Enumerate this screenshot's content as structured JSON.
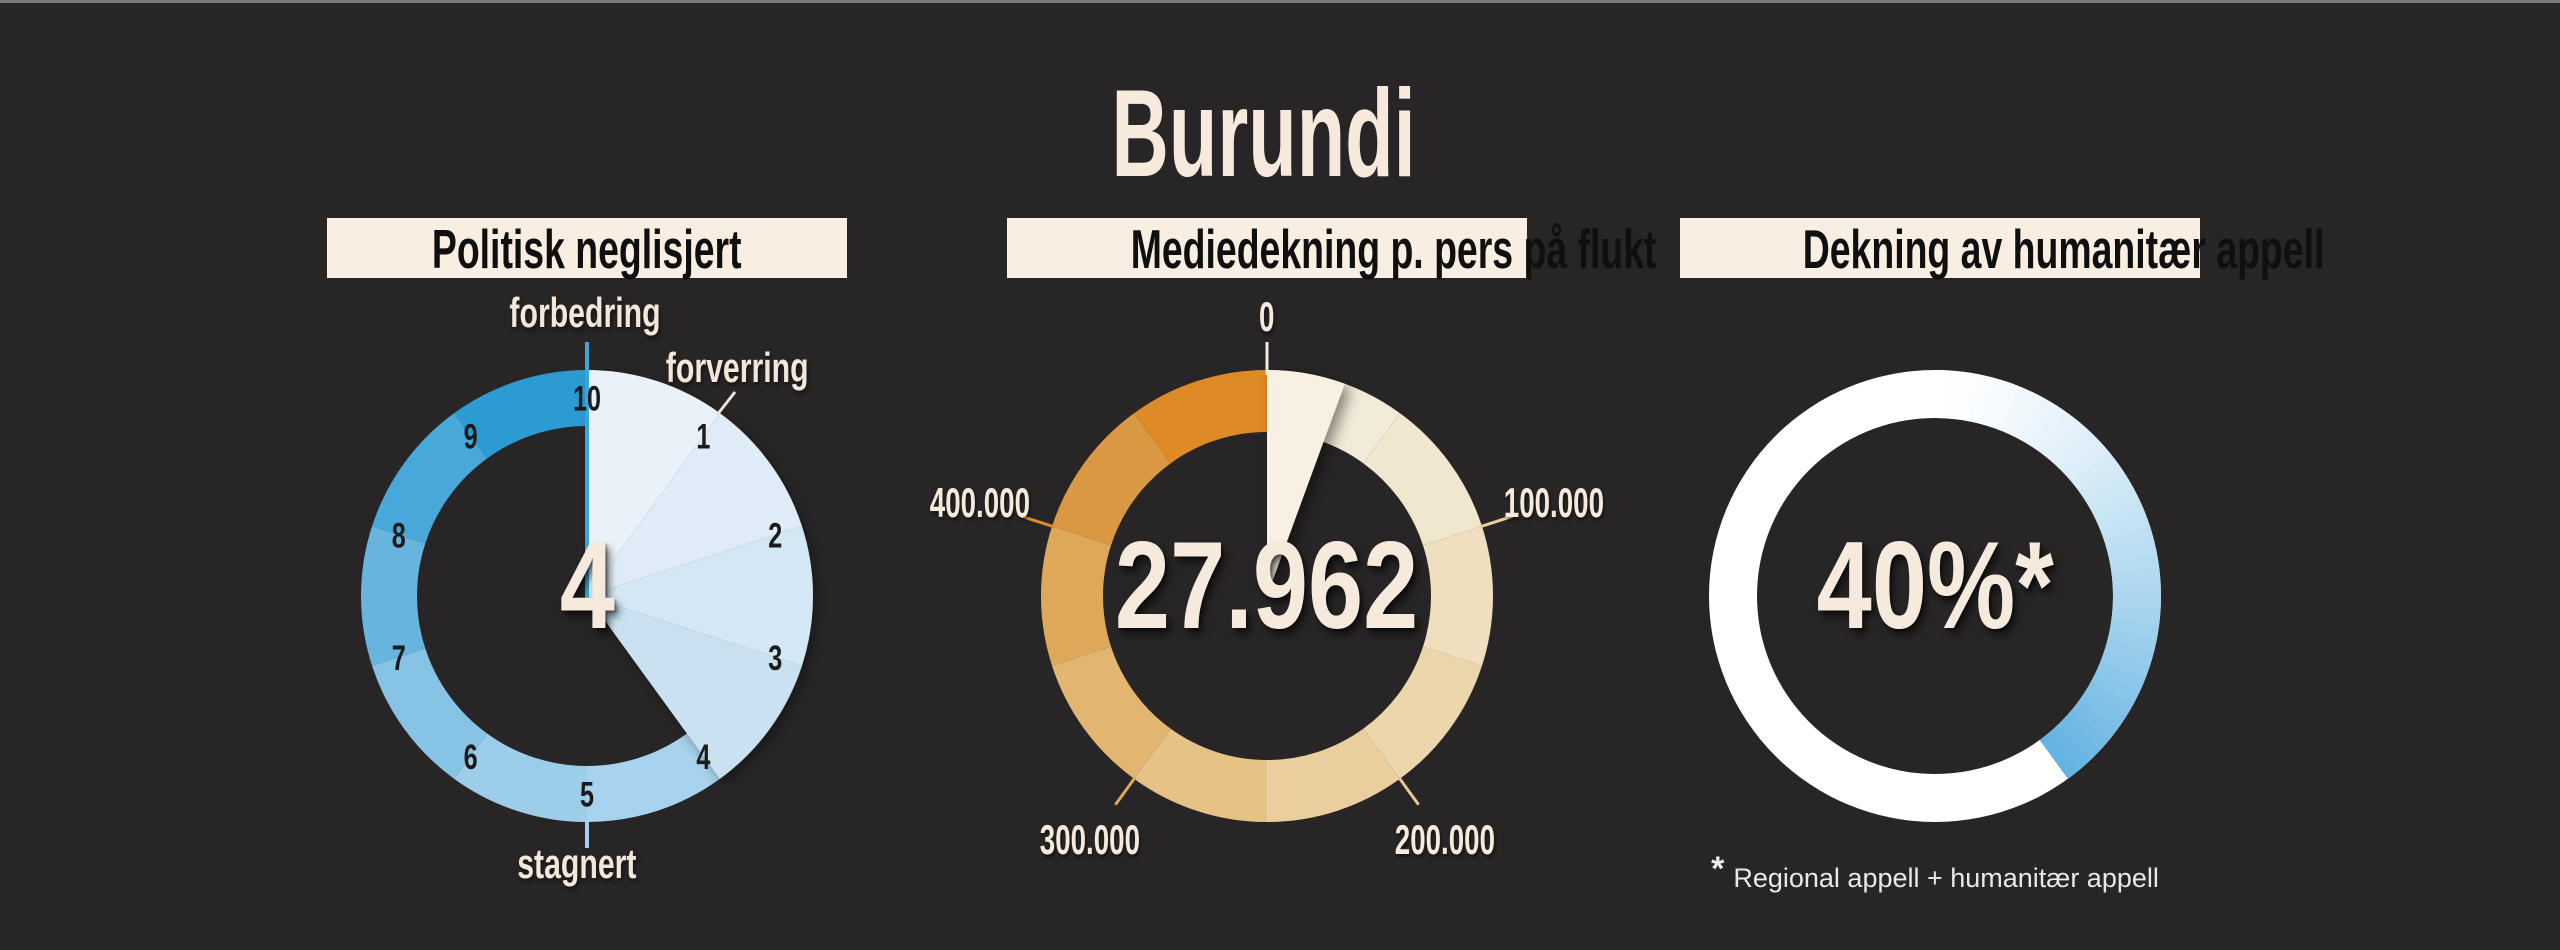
{
  "page": {
    "title": "Burundi",
    "background_color": "#272525",
    "top_border_color": "#7b7b7b",
    "cream_color": "#F5EADC"
  },
  "chart_data": [
    {
      "type": "gauge-clock",
      "title": "Politisk neglisjert",
      "value": 4,
      "value_label": "4",
      "scale": {
        "min": 0,
        "max": 10,
        "tick_labels": [
          "1",
          "2",
          "3",
          "4",
          "5",
          "6",
          "7",
          "8",
          "9",
          "10"
        ]
      },
      "annotations": {
        "top": "forbedring",
        "upper_right": "forverring",
        "bottom": "stagnert"
      },
      "sector_colors": [
        "#E9F2F9",
        "#DFECF7",
        "#D4E7F4",
        "#CAE1F1",
        "#A8D3EE",
        "#9CCEEA",
        "#86C3E5",
        "#67B5DF",
        "#47A8D9",
        "#2B9BD2"
      ],
      "pointer_color": "#3AA5DA",
      "bottom_tick_color": "#9FD0EC",
      "leader_color": "#F0E2D2",
      "tick_number_color": "#1B1B1B"
    },
    {
      "type": "gauge-scale",
      "title": "Mediedekning p. pers på flukt",
      "value": 27962,
      "value_label": "27.962",
      "scale": {
        "min": 0,
        "max": 500000,
        "tick_angles": [
          0,
          72,
          144,
          216,
          288
        ],
        "tick_labels": [
          "0",
          "100.000",
          "200.000",
          "300.000",
          "400.000"
        ]
      },
      "segment_colors": [
        "#F3EBD9",
        "#F1E6CE",
        "#EFDFBE",
        "#ECD6AC",
        "#EACE9E",
        "#E6C286",
        "#E2B671",
        "#DEA85A",
        "#DB9842",
        "#DE8A26"
      ],
      "wedge_color": "#F8F1E3",
      "tick_colors": [
        "#F1E9DA",
        "#EACF9F",
        "#E8C794",
        "#DFA75A",
        "#DA8C2B"
      ],
      "label_color": "#F5EADC"
    },
    {
      "type": "donut-progress",
      "title": "Dekning av humanitær appell",
      "value_pct": 40,
      "value_label": "40%*",
      "ring_color": "#FFFFFF",
      "arc_end_color": "#61B2E0",
      "footnote_star": "*",
      "footnote_text": "Regional appell + humanitær appell"
    }
  ]
}
